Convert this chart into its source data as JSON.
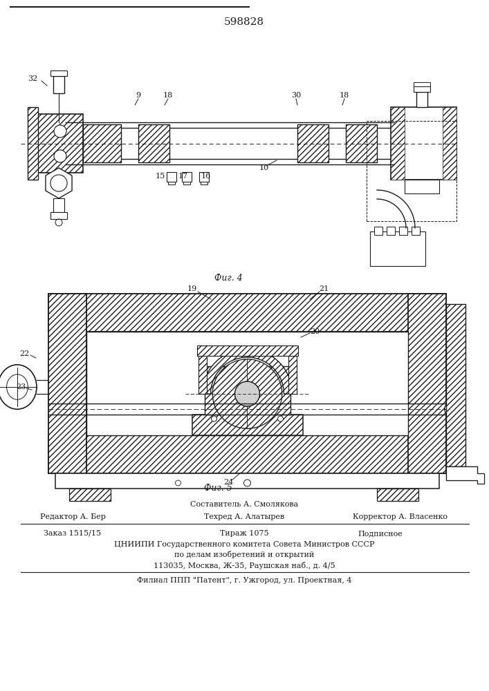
{
  "patent_number": "598828",
  "fig4_label": "Фиг. 4",
  "fig5_label": "Фиг. 5",
  "footer_line1": "Составитель А. Смолякова",
  "footer_line2_left": "Редактор А. Бер",
  "footer_line2_mid": "Техред А. Алатырев",
  "footer_line2_right": "Корректор А. Власенко",
  "footer_line3_left": "Заказ 1515/15",
  "footer_line3_mid": "Тираж 1075",
  "footer_line3_right": "Подписное",
  "footer_line4": "ЦНИИПИ Государственного комитета Совета Министров СССР",
  "footer_line5": "по делам изобретений и открытий",
  "footer_line6": "113035, Москва, Ж-35, Раушская наб., д. 4/5",
  "footer_line7": "Филиал ППП \"Патент\", г. Ужгород, ул. Проектная, 4",
  "bg_color": "#ffffff",
  "line_color": "#1a1a1a",
  "hatch_color": "#333333"
}
